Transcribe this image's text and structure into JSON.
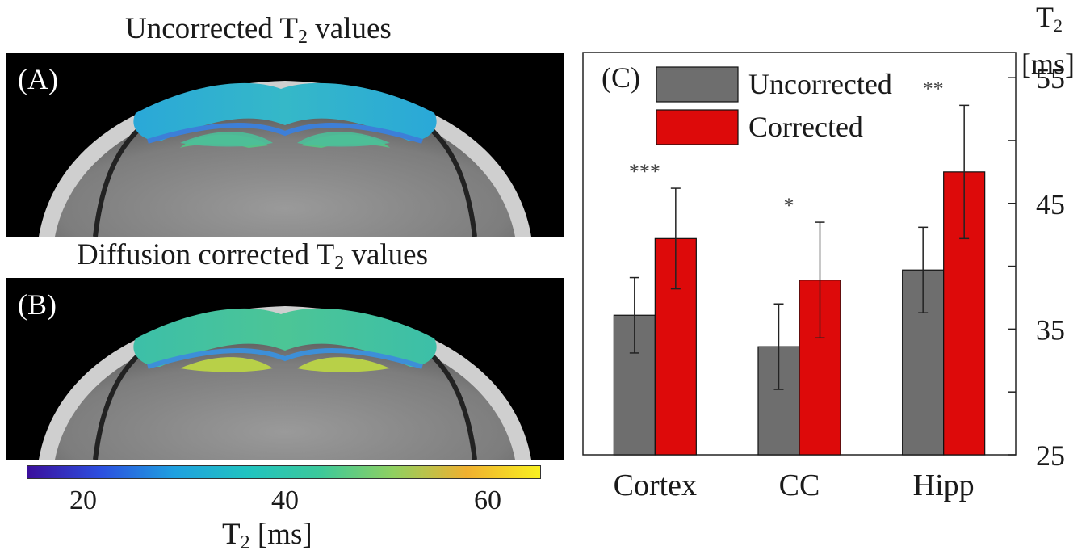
{
  "panel_a": {
    "title_main": "Uncorrected T",
    "title_sub": "2",
    "title_tail": " values",
    "label": "(A)"
  },
  "panel_b": {
    "title_main": "Diffusion corrected T",
    "title_sub": "2",
    "title_tail": " values",
    "label": "(B)"
  },
  "colorbar": {
    "ticks": [
      "20",
      "40",
      "60"
    ],
    "label_main": "T",
    "label_sub": "2",
    "label_tail": " [ms]",
    "colors": [
      "#3b0f9c",
      "#2c4fe0",
      "#1fa0e0",
      "#20c3c0",
      "#3cc99a",
      "#90d060",
      "#f0b030",
      "#f8f020"
    ]
  },
  "chart_data": {
    "type": "bar",
    "panel_label": "(C)",
    "categories": [
      "Cortex",
      "CC",
      "Hipp"
    ],
    "series": [
      {
        "name": "Uncorrected",
        "color": "#6e6e6e",
        "values": [
          36.1,
          33.6,
          39.7
        ],
        "errors": [
          3.0,
          3.4,
          3.4
        ]
      },
      {
        "name": "Corrected",
        "color": "#dd0a0a",
        "values": [
          42.2,
          38.9,
          47.5
        ],
        "errors": [
          4.0,
          4.6,
          5.3
        ]
      }
    ],
    "significance": [
      "***",
      "*",
      "**"
    ],
    "ylim": [
      25,
      57
    ],
    "yticks": [
      25,
      35,
      45,
      55
    ],
    "yaxis_side": "right",
    "ylabel_main": "T",
    "ylabel_sub": "2",
    "ylabel_unit": "[ms]",
    "legend_position": "top-left",
    "grid": false
  }
}
